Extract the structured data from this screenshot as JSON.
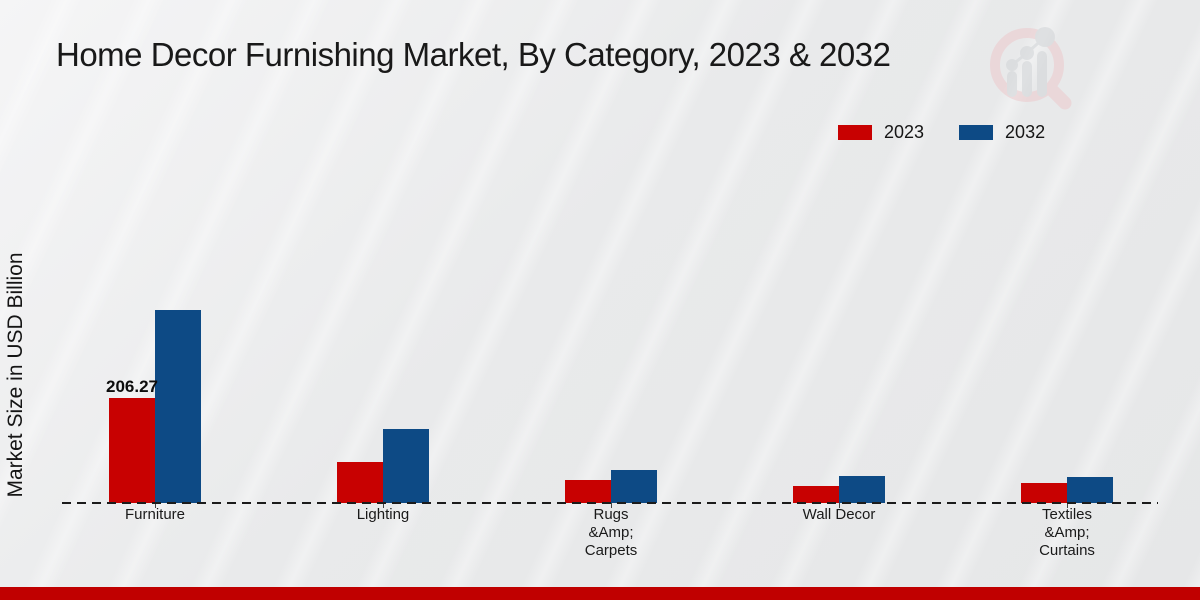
{
  "title": "Home Decor Furnishing Market, By Category, 2023 & 2032",
  "watermark": {
    "icon": "magnifier-bar-chart-logo"
  },
  "legend": {
    "position": "top-right",
    "items": [
      {
        "label": "2023",
        "color": "#c80101"
      },
      {
        "label": "2032",
        "color": "#0d4a85"
      }
    ]
  },
  "colors": {
    "series_2023": "#c80101",
    "series_2032": "#0d4a85",
    "footer_bar": "#c00000",
    "axis_line": "#1b1b1b",
    "background": "#e9eaeb"
  },
  "chart_data": {
    "type": "bar",
    "title": "Home Decor Furnishing Market, By Category, 2023 & 2032",
    "xlabel": "",
    "ylabel": "Market Size in USD Billion",
    "grid": false,
    "baseline_style": "dashed",
    "legend_position": "top-right",
    "ylim": [
      0,
      420
    ],
    "categories": [
      "Furniture",
      "Lighting",
      "Rugs\n&Amp;\nCarpets",
      "Wall Decor",
      "Textiles\n&Amp;\nCurtains"
    ],
    "series": [
      {
        "name": "2023",
        "color": "#c80101",
        "values": [
          206.27,
          80,
          46,
          34,
          39
        ]
      },
      {
        "name": "2032",
        "color": "#0d4a85",
        "values": [
          380,
          147,
          65,
          53,
          52
        ]
      }
    ],
    "data_label": {
      "series": "2023",
      "category": "Furniture",
      "text": "206.27"
    }
  }
}
